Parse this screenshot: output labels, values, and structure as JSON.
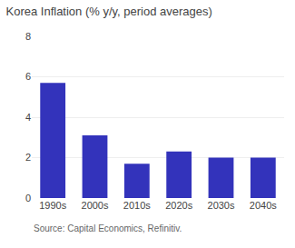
{
  "chart_data": {
    "type": "bar",
    "title": "Korea Inflation (% y/y, period averages)",
    "categories": [
      "1990s",
      "2000s",
      "2010s",
      "2020s",
      "2030s",
      "2040s"
    ],
    "values": [
      5.7,
      3.1,
      1.7,
      2.3,
      2.0,
      2.0
    ],
    "color": "#3333bb",
    "ylim": [
      0,
      8
    ],
    "yticks": [
      0,
      2,
      4,
      6,
      8
    ],
    "grid": true,
    "annotations": [
      "Source: Capital Economics, Refinitiv."
    ]
  }
}
